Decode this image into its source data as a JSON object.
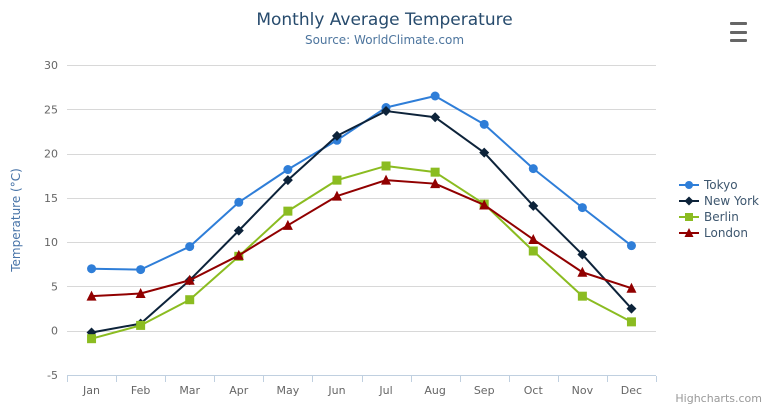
{
  "header": {
    "title": "Monthly Average Temperature",
    "subtitle": "Source: WorldClimate.com"
  },
  "credits": {
    "label": "Highcharts.com"
  },
  "icons": {
    "context_menu": "hamburger-icon"
  },
  "chart_data": {
    "type": "line",
    "title": "Monthly Average Temperature",
    "subtitle": "Source: WorldClimate.com",
    "categories": [
      "Jan",
      "Feb",
      "Mar",
      "Apr",
      "May",
      "Jun",
      "Jul",
      "Aug",
      "Sep",
      "Oct",
      "Nov",
      "Dec"
    ],
    "series": [
      {
        "name": "Tokyo",
        "color": "#2f7ed8",
        "marker": "circle",
        "values": [
          7.0,
          6.9,
          9.5,
          14.5,
          18.2,
          21.5,
          25.2,
          26.5,
          23.3,
          18.3,
          13.9,
          9.6
        ]
      },
      {
        "name": "New York",
        "color": "#0d233a",
        "marker": "diamond",
        "values": [
          -0.2,
          0.8,
          5.7,
          11.3,
          17.0,
          22.0,
          24.8,
          24.1,
          20.1,
          14.1,
          8.6,
          2.5
        ]
      },
      {
        "name": "Berlin",
        "color": "#8bbc21",
        "marker": "square",
        "values": [
          -0.9,
          0.6,
          3.5,
          8.4,
          13.5,
          17.0,
          18.6,
          17.9,
          14.3,
          9.0,
          3.9,
          1.0
        ]
      },
      {
        "name": "London",
        "color": "#910000",
        "marker": "triangle",
        "values": [
          3.9,
          4.2,
          5.7,
          8.5,
          11.9,
          15.2,
          17.0,
          16.6,
          14.2,
          10.3,
          6.6,
          4.8
        ]
      }
    ],
    "xlabel": "",
    "ylabel": "Temperature (°C)",
    "ylim": [
      -5,
      30
    ],
    "yticks": [
      -5,
      0,
      5,
      10,
      15,
      20,
      25,
      30
    ],
    "grid": true,
    "legend_position": "right",
    "colors": {
      "grid_line": "#d8d8d8",
      "axis_line": "#c0d0e0",
      "tick": "#c0d0e0",
      "axis_label": "#666666",
      "title": "#274b6d",
      "subtitle": "#4d759e",
      "y_axis_title": "#4874a8",
      "legend_text": "#3e576f"
    }
  }
}
